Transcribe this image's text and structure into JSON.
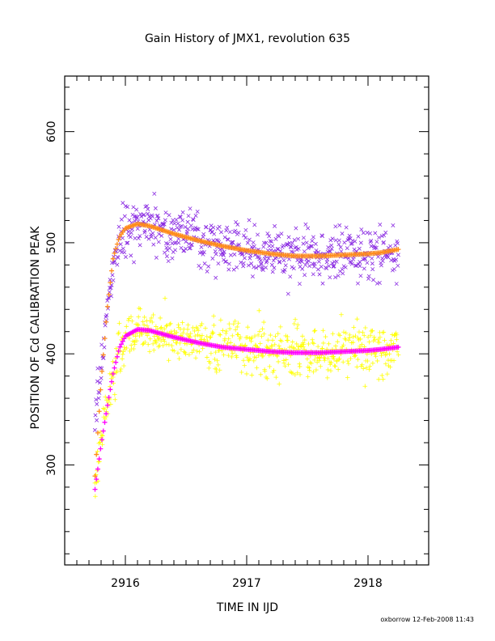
{
  "chart_data": {
    "type": "scatter",
    "title": "Gain History of JMX1, revolution 635",
    "xlabel": "TIME IN IJD",
    "ylabel": "POSITION OF Cd CALIBRATION PEAK",
    "xlim": [
      2915.5,
      2918.5
    ],
    "ylim": [
      210,
      650
    ],
    "xticks": [
      2916,
      2917,
      2918
    ],
    "xtick_labels": [
      "2916",
      "2917",
      "2918"
    ],
    "yticks": [
      300,
      400,
      500,
      600
    ],
    "ytick_labels": [
      "300",
      "400",
      "500",
      "600"
    ],
    "footer": "oxborrow 12-Feb-2008 11:43",
    "grid": false,
    "series": [
      {
        "kind": "scatter",
        "marker": "x",
        "color": "#8a2be2",
        "x_range": [
          2915.75,
          2918.25
        ],
        "trend": [
          [
            2915.75,
            340
          ],
          [
            2915.85,
            440
          ],
          [
            2915.95,
            505
          ],
          [
            2916.1,
            518
          ],
          [
            2916.4,
            508
          ],
          [
            2916.8,
            498
          ],
          [
            2917.2,
            490
          ],
          [
            2917.6,
            488
          ],
          [
            2918.0,
            490
          ],
          [
            2918.25,
            494
          ]
        ],
        "scatter_sd": 11
      },
      {
        "kind": "scatter",
        "marker": "+",
        "color": "#ffff00",
        "x_range": [
          2915.75,
          2918.25
        ],
        "trend": [
          [
            2915.75,
            285
          ],
          [
            2915.85,
            355
          ],
          [
            2915.95,
            405
          ],
          [
            2916.1,
            422
          ],
          [
            2916.4,
            415
          ],
          [
            2916.8,
            408
          ],
          [
            2917.2,
            402
          ],
          [
            2917.6,
            401
          ],
          [
            2918.0,
            404
          ],
          [
            2918.25,
            406
          ]
        ],
        "scatter_sd": 11
      },
      {
        "kind": "fit-line",
        "color": "#ff8c1a",
        "points": [
          [
            2915.75,
            290
          ],
          [
            2915.8,
            375
          ],
          [
            2915.85,
            440
          ],
          [
            2915.9,
            487
          ],
          [
            2915.95,
            505
          ],
          [
            2916.0,
            513
          ],
          [
            2916.1,
            517
          ],
          [
            2916.2,
            515
          ],
          [
            2916.4,
            508
          ],
          [
            2916.6,
            502
          ],
          [
            2916.8,
            497
          ],
          [
            2917.0,
            493
          ],
          [
            2917.2,
            490
          ],
          [
            2917.4,
            488
          ],
          [
            2917.6,
            488
          ],
          [
            2917.8,
            489
          ],
          [
            2918.0,
            490
          ],
          [
            2918.1,
            491
          ],
          [
            2918.25,
            494
          ]
        ]
      },
      {
        "kind": "fit-line",
        "color": "#ff00ff",
        "points": [
          [
            2915.75,
            278
          ],
          [
            2915.8,
            318
          ],
          [
            2915.85,
            352
          ],
          [
            2915.9,
            383
          ],
          [
            2915.95,
            405
          ],
          [
            2916.0,
            416
          ],
          [
            2916.1,
            422
          ],
          [
            2916.2,
            421
          ],
          [
            2916.4,
            415
          ],
          [
            2916.6,
            410
          ],
          [
            2916.8,
            406
          ],
          [
            2917.0,
            404
          ],
          [
            2917.2,
            402
          ],
          [
            2917.4,
            401
          ],
          [
            2917.6,
            401
          ],
          [
            2917.8,
            402
          ],
          [
            2918.0,
            403
          ],
          [
            2918.1,
            404
          ],
          [
            2918.25,
            406
          ]
        ]
      }
    ]
  }
}
